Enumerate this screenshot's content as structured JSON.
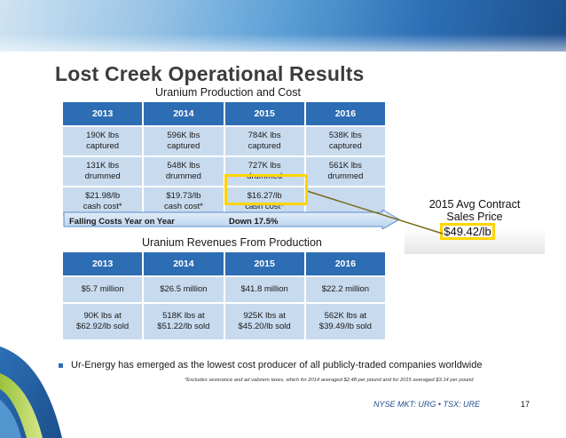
{
  "title": "Lost Creek Operational Results",
  "production_table": {
    "caption": "Uranium Production and Cost",
    "headers": [
      "2013",
      "2014",
      "2015",
      "2016"
    ],
    "rows": [
      [
        [
          "190K lbs",
          "captured"
        ],
        [
          "596K lbs",
          "captured"
        ],
        [
          "784K lbs",
          "captured"
        ],
        [
          "538K lbs",
          "captured"
        ]
      ],
      [
        [
          "131K lbs",
          "drummed"
        ],
        [
          "548K lbs",
          "drummed"
        ],
        [
          "727K lbs",
          "drummed"
        ],
        [
          "561K lbs",
          "drummed"
        ]
      ],
      [
        [
          "$21.98/lb",
          "cash cost*"
        ],
        [
          "$19.73/lb",
          "cash cost*"
        ],
        [
          "$16.27/lb",
          "cash cost*"
        ],
        [
          "",
          ""
        ]
      ]
    ]
  },
  "falling_costs": {
    "label": "Falling Costs Year on Year",
    "value": "Down 17.5%"
  },
  "contract": {
    "label_line1": "2015 Avg Contract",
    "label_line2": "Sales Price",
    "price": "$49.42/lb"
  },
  "revenue_table": {
    "caption": "Uranium Revenues From Production",
    "headers": [
      "2013",
      "2014",
      "2015",
      "2016"
    ],
    "rows": [
      [
        [
          "$5.7 million"
        ],
        [
          "$26.5 million"
        ],
        [
          "$41.8 million"
        ],
        [
          "$22.2 million"
        ]
      ],
      [
        [
          "90K lbs at",
          "$62.92/lb sold"
        ],
        [
          "518K lbs at",
          "$51.22/lb sold"
        ],
        [
          "925K lbs at",
          "$45.20/lb sold"
        ],
        [
          "562K lbs at",
          "$39.49/lb sold"
        ]
      ]
    ]
  },
  "bullet": "Ur-Energy has emerged as the lowest cost producer of all publicly-traded companies worldwide",
  "footnote": "*Excludes severance and ad valorem taxes, which for 2014 averaged $2.48 per pound and for 2015 averaged $3.14 per pound",
  "ticker": "NYSE MKT: URG • TSX: URE",
  "page_number": "17",
  "colors": {
    "header_blue": "#2d6db3",
    "cell_blue": "#c8daee",
    "highlight_yellow": "#ffd400",
    "connector_olive": "#7a6a1a"
  }
}
